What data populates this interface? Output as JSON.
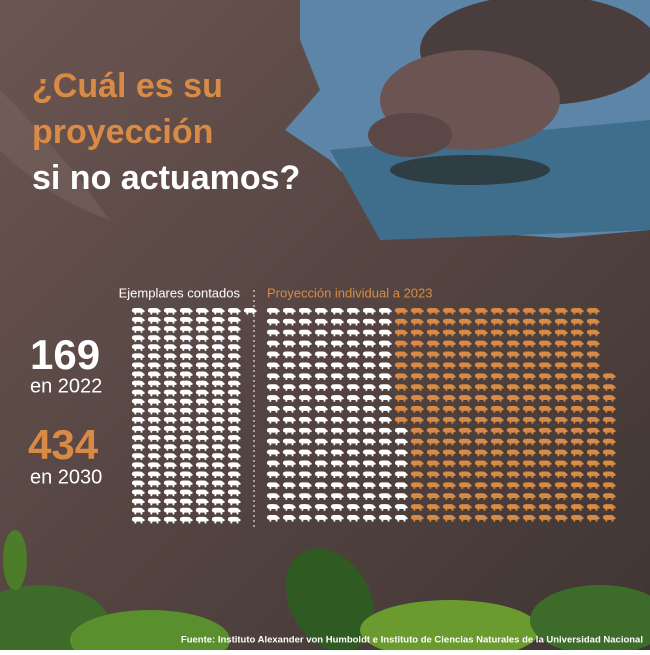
{
  "title_highlight": "¿Cuál es su proyección",
  "title_rest": "si no actuamos?",
  "source": "Fuente: Instituto Alexander von Humboldt e Instituto de Ciencias Naturales de la Universidad Nacional",
  "chart_data": {
    "type": "pictogram",
    "panels": [
      "Ejemplares contados",
      "Proyección individual a 2023"
    ],
    "stats": [
      {
        "value": 169,
        "label": "en 2022",
        "color": "#ffffff"
      },
      {
        "value": 434,
        "label": "en 2030",
        "color": "#d98b45"
      }
    ]
  }
}
